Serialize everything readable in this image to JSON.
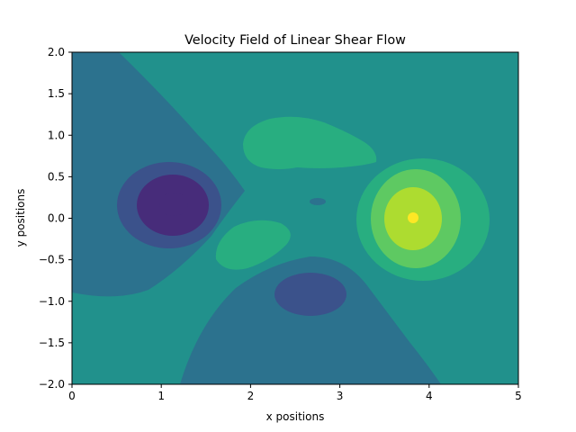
{
  "chart_data": {
    "type": "contourf",
    "title": "Velocity Field of Linear Shear Flow",
    "xlabel": "x positions",
    "ylabel": "y positions",
    "xlim": [
      0,
      5
    ],
    "ylim": [
      -2,
      2
    ],
    "xticks": [
      0,
      1,
      2,
      3,
      4,
      5
    ],
    "yticks": [
      2.0,
      1.5,
      1.0,
      0.5,
      0.0,
      -0.5,
      -1.0,
      -1.5,
      -2.0
    ],
    "xtick_labels": [
      "0",
      "1",
      "2",
      "3",
      "4",
      "5"
    ],
    "ytick_labels": [
      "2.0",
      "1.5",
      "1.0",
      "0.5",
      "0.0",
      "−0.5",
      "−1.0",
      "−1.5",
      "−2.0"
    ],
    "grid": false,
    "colormap": "viridis",
    "level_colors": [
      "#472c7a",
      "#3b528b",
      "#2c728e",
      "#21918c",
      "#28ae80",
      "#5ec962",
      "#addc30",
      "#fde725"
    ],
    "level_regions": [
      {
        "name": "background-level",
        "level": 3
      },
      {
        "name": "left-low-region",
        "level": 2
      },
      {
        "name": "bottom-low-region",
        "level": 2
      },
      {
        "name": "upper-high-lobe",
        "level": 4
      },
      {
        "name": "lower-high-lobe",
        "level": 4
      },
      {
        "name": "left-vortex-ring-1",
        "level": 1
      },
      {
        "name": "left-vortex-ring-2",
        "level": 0
      },
      {
        "name": "left-vortex-core",
        "level": 0
      },
      {
        "name": "bottom-vortex",
        "level": 1
      },
      {
        "name": "center-small-vortex",
        "level": 2
      },
      {
        "name": "right-vortex-ring-1",
        "level": 4
      },
      {
        "name": "right-vortex-ring-2",
        "level": 5
      },
      {
        "name": "right-vortex-ring-3",
        "level": 6
      },
      {
        "name": "right-vortex-core",
        "level": 7
      }
    ]
  }
}
